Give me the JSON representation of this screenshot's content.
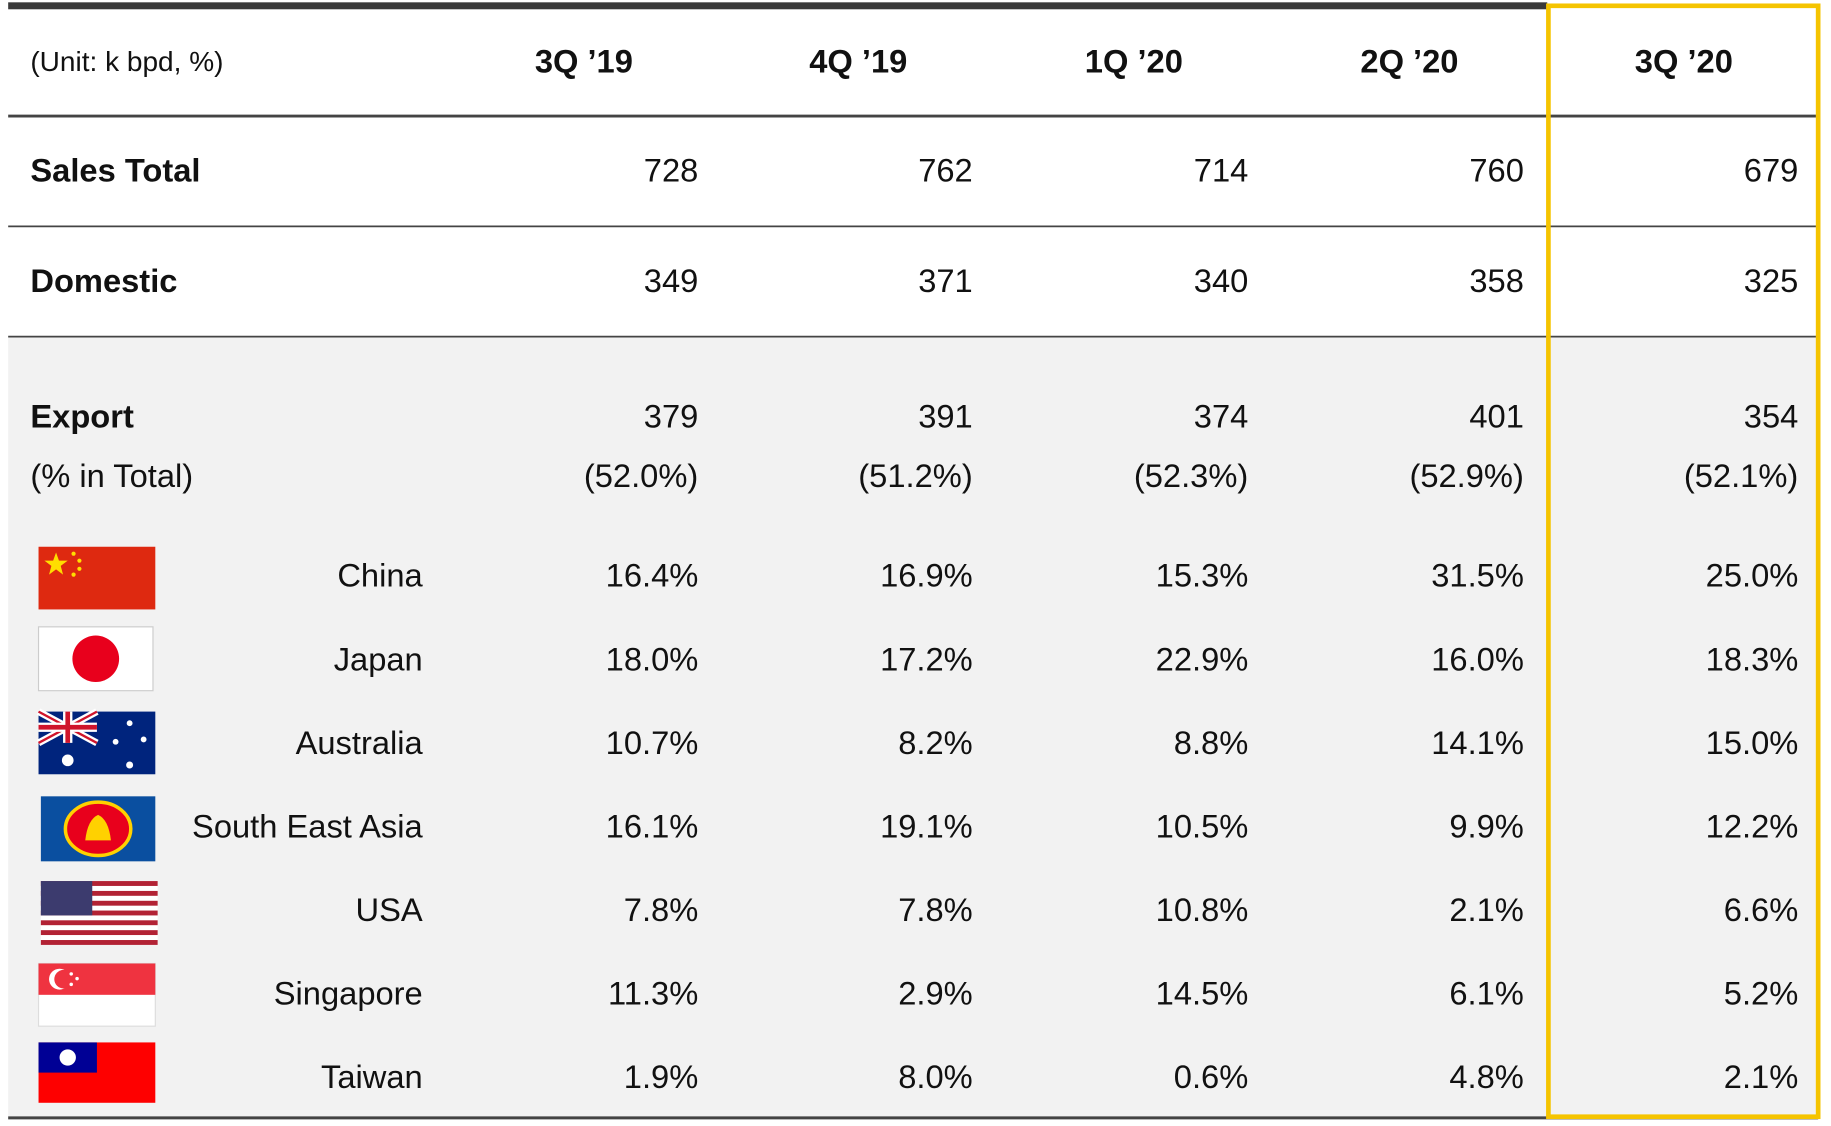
{
  "header": {
    "unit": "(Unit: k bpd, %)",
    "columns": [
      "3Q ’19",
      "4Q ’19",
      "1Q ’20",
      "2Q ’20",
      "3Q ’20"
    ]
  },
  "rows": [
    {
      "label": "Sales Total",
      "values": [
        "728",
        "762",
        "714",
        "760",
        "679"
      ]
    },
    {
      "label": "Domestic",
      "values": [
        "349",
        "371",
        "340",
        "358",
        "325"
      ]
    }
  ],
  "export": {
    "label": "Export",
    "values": [
      "379",
      "391",
      "374",
      "401",
      "354"
    ],
    "share_label": "(% in Total)",
    "shares": [
      "(52.0%)",
      "(51.2%)",
      "(52.3%)",
      "(52.9%)",
      "(52.1%)"
    ]
  },
  "countries": [
    {
      "name": "China",
      "values": [
        "16.4%",
        "16.9%",
        "15.3%",
        "31.5%",
        "25.0%"
      ]
    },
    {
      "name": "Japan",
      "values": [
        "18.0%",
        "17.2%",
        "22.9%",
        "16.0%",
        "18.3%"
      ]
    },
    {
      "name": "Australia",
      "values": [
        "10.7%",
        "8.2%",
        "8.8%",
        "14.1%",
        "15.0%"
      ]
    },
    {
      "name": "South East Asia",
      "values": [
        "16.1%",
        "19.1%",
        "10.5%",
        "9.9%",
        "12.2%"
      ]
    },
    {
      "name": "USA",
      "values": [
        "7.8%",
        "7.8%",
        "10.8%",
        "2.1%",
        "6.6%"
      ]
    },
    {
      "name": "Singapore",
      "values": [
        "11.3%",
        "2.9%",
        "14.5%",
        "6.1%",
        "5.2%"
      ]
    },
    {
      "name": "Taiwan",
      "values": [
        "1.9%",
        "8.0%",
        "0.6%",
        "4.8%",
        "2.1%"
      ]
    }
  ]
}
